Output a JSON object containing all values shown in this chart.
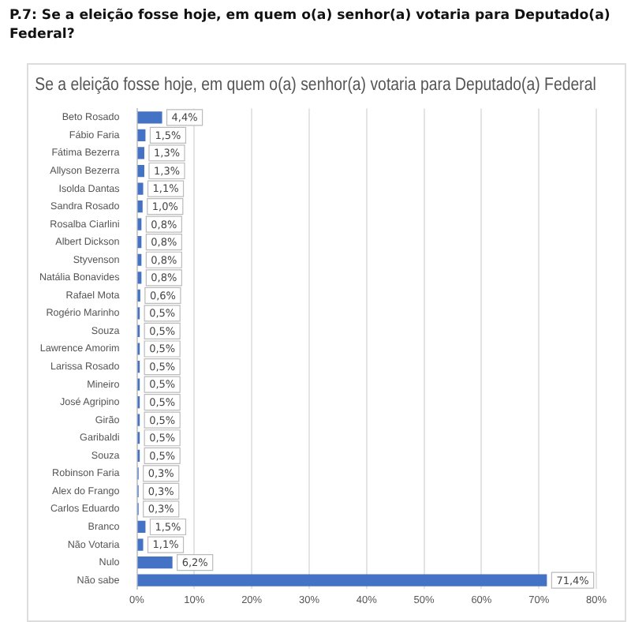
{
  "chart_data": {
    "type": "bar",
    "orientation": "horizontal",
    "title": "P.7: Se a eleição fosse hoje, em quem o(a) senhor(a) votaria para Deputado(a) Federal?",
    "subtitle": "Se a eleição fosse hoje, em quem o(a) senhor(a) votaria para Deputado(a) Federal",
    "categories": [
      "Beto Rosado",
      "Fábio Faria",
      "Fátima Bezerra",
      "Allyson Bezerra",
      "Isolda Dantas",
      "Sandra Rosado",
      "Rosalba Ciarlini",
      "Albert Dickson",
      "Styvenson",
      "Natália Bonavides",
      "Rafael Mota",
      "Rogério Marinho",
      "Souza",
      "Lawrence Amorim",
      "Larissa Rosado",
      "Mineiro",
      "José Agripino",
      "Girão",
      "Garibaldi",
      "Souza",
      "Robinson Faria",
      "Alex do Frango",
      "Carlos Eduardo",
      "Branco",
      "Não Votaria",
      "Nulo",
      "Não sabe"
    ],
    "values": [
      4.4,
      1.5,
      1.3,
      1.3,
      1.1,
      1.0,
      0.8,
      0.8,
      0.8,
      0.8,
      0.6,
      0.5,
      0.5,
      0.5,
      0.5,
      0.5,
      0.5,
      0.5,
      0.5,
      0.5,
      0.3,
      0.3,
      0.3,
      1.5,
      1.1,
      6.2,
      71.4
    ],
    "value_labels": [
      "4,4%",
      "1,5%",
      "1,3%",
      "1,3%",
      "1,1%",
      "1,0%",
      "0,8%",
      "0,8%",
      "0,8%",
      "0,8%",
      "0,6%",
      "0,5%",
      "0,5%",
      "0,5%",
      "0,5%",
      "0,5%",
      "0,5%",
      "0,5%",
      "0,5%",
      "0,5%",
      "0,3%",
      "0,3%",
      "0,3%",
      "1,5%",
      "1,1%",
      "6,2%",
      "71,4%"
    ],
    "color": "#4472c4",
    "xlim": [
      0,
      80
    ],
    "xticks": [
      {
        "value": 0,
        "label": "0%"
      },
      {
        "value": 10,
        "label": "10%"
      },
      {
        "value": 20,
        "label": "20%"
      },
      {
        "value": 30,
        "label": "30%"
      },
      {
        "value": 40,
        "label": "40%"
      },
      {
        "value": 50,
        "label": "50%"
      },
      {
        "value": 60,
        "label": "60%"
      },
      {
        "value": 70,
        "label": "70%"
      },
      {
        "value": 80,
        "label": "80%"
      }
    ],
    "grid": "x",
    "legend": false
  }
}
